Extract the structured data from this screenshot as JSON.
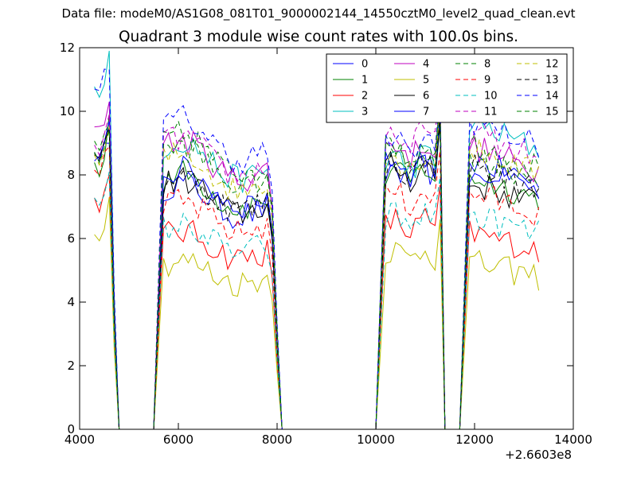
{
  "suptitle": "Data file: modeM0/AS1G08_081T01_9000002144_14550cztM0_level2_quad_clean.evt",
  "chart_data": {
    "type": "line",
    "title": "Quadrant 3 module wise count rates with 100.0s bins.",
    "xlabel": "",
    "ylabel": "",
    "xlim": [
      4000,
      14000
    ],
    "ylim": [
      0,
      12
    ],
    "xticks": [
      4000,
      6000,
      8000,
      10000,
      12000,
      14000
    ],
    "yticks": [
      0,
      2,
      4,
      6,
      8,
      10,
      12
    ],
    "x_offset_label": "+2.6603e8",
    "legend_position": "upper-right",
    "legend_columns": 4,
    "series": [
      {
        "name": "0",
        "color": "#0000ff",
        "dash": "solid",
        "level": 8.6,
        "segs": [
          9.0,
          7.6,
          8.0,
          8.1
        ]
      },
      {
        "name": "1",
        "color": "#008000",
        "dash": "solid",
        "level": 8.3,
        "segs": [
          9.9,
          7.9,
          8.0,
          7.6
        ]
      },
      {
        "name": "2",
        "color": "#ff0000",
        "dash": "solid",
        "level": 7.2,
        "segs": [
          8.0,
          6.1,
          6.4,
          5.9
        ]
      },
      {
        "name": "3",
        "color": "#00bfbf",
        "dash": "solid",
        "level": 10.6,
        "segs": [
          11.9,
          8.9,
          8.4,
          9.2
        ]
      },
      {
        "name": "4",
        "color": "#bf00bf",
        "dash": "solid",
        "level": 9.6,
        "segs": [
          10.3,
          8.9,
          8.8,
          8.5
        ]
      },
      {
        "name": "5",
        "color": "#bfbf00",
        "dash": "solid",
        "level": 6.3,
        "segs": [
          7.3,
          5.2,
          5.5,
          5.0
        ]
      },
      {
        "name": "6",
        "color": "#000000",
        "dash": "solid",
        "level": 8.7,
        "segs": [
          9.5,
          7.7,
          8.1,
          7.4
        ]
      },
      {
        "name": "7",
        "color": "#0000ff",
        "dash": "solid",
        "level": 8.8,
        "segs": [
          9.7,
          8.0,
          8.3,
          7.8
        ]
      },
      {
        "name": "8",
        "color": "#008000",
        "dash": "dashed",
        "level": 8.9,
        "segs": [
          9.6,
          9.1,
          8.8,
          8.6
        ]
      },
      {
        "name": "9",
        "color": "#ff0000",
        "dash": "dashed",
        "level": 8.3,
        "segs": [
          8.9,
          7.0,
          7.3,
          7.1
        ]
      },
      {
        "name": "10",
        "color": "#00bfbf",
        "dash": "dashed",
        "level": 7.1,
        "segs": [
          8.1,
          6.3,
          6.6,
          6.4
        ]
      },
      {
        "name": "11",
        "color": "#bf00bf",
        "dash": "dashed",
        "level": 9.0,
        "segs": [
          9.9,
          9.0,
          9.1,
          8.9
        ]
      },
      {
        "name": "12",
        "color": "#bfbf00",
        "dash": "dashed",
        "level": 8.5,
        "segs": [
          9.5,
          8.5,
          8.4,
          8.4
        ]
      },
      {
        "name": "13",
        "color": "#000000",
        "dash": "dashed",
        "level": 8.8,
        "segs": [
          9.4,
          7.8,
          8.2,
          7.9
        ]
      },
      {
        "name": "14",
        "color": "#0000ff",
        "dash": "dashed",
        "level": 10.9,
        "segs": [
          11.3,
          9.6,
          8.9,
          9.3
        ]
      },
      {
        "name": "15",
        "color": "#008000",
        "dash": "dashed",
        "level": 8.7,
        "segs": [
          9.4,
          8.7,
          8.6,
          8.2
        ]
      }
    ]
  }
}
